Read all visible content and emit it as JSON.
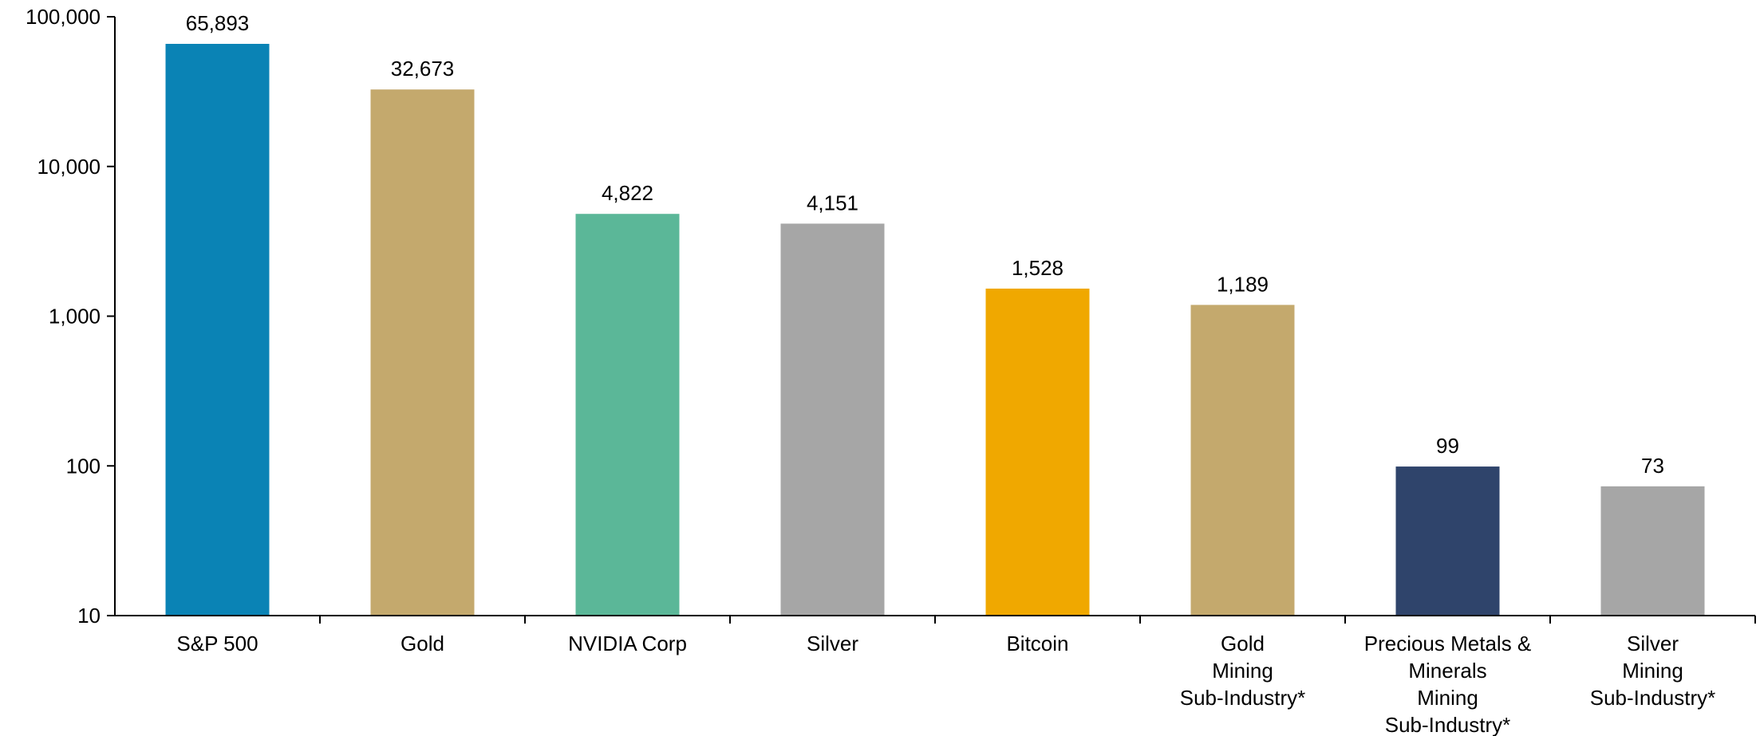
{
  "chart_data": {
    "type": "bar",
    "title": "",
    "xlabel": "",
    "ylabel": "",
    "scale": "log",
    "ylim": [
      10,
      100000
    ],
    "grid": false,
    "legend": "none",
    "y_ticks": [
      {
        "value": 10,
        "label": "10"
      },
      {
        "value": 100,
        "label": "100"
      },
      {
        "value": 1000,
        "label": "1,000"
      },
      {
        "value": 10000,
        "label": "10,000"
      },
      {
        "value": 100000,
        "label": "100,000"
      }
    ],
    "categories": [
      [
        "S&P 500"
      ],
      [
        "Gold"
      ],
      [
        "NVIDIA Corp"
      ],
      [
        "Silver"
      ],
      [
        "Bitcoin"
      ],
      [
        "Gold",
        "Mining",
        "Sub-Industry*"
      ],
      [
        "Precious Metals &",
        "Minerals",
        "Mining",
        "Sub-Industry*"
      ],
      [
        "Silver",
        "Mining",
        "Sub-Industry*"
      ]
    ],
    "values": [
      65893,
      32673,
      4822,
      4151,
      1528,
      1189,
      99,
      73
    ],
    "value_labels": [
      "65,893",
      "32,673",
      "4,822",
      "4,151",
      "1,528",
      "1,189",
      "99",
      "73"
    ],
    "colors": [
      "#0a83b5",
      "#c4a96d",
      "#5bb798",
      "#a6a6a6",
      "#f0a800",
      "#c4a96d",
      "#2f446b",
      "#a6a6a6"
    ]
  }
}
